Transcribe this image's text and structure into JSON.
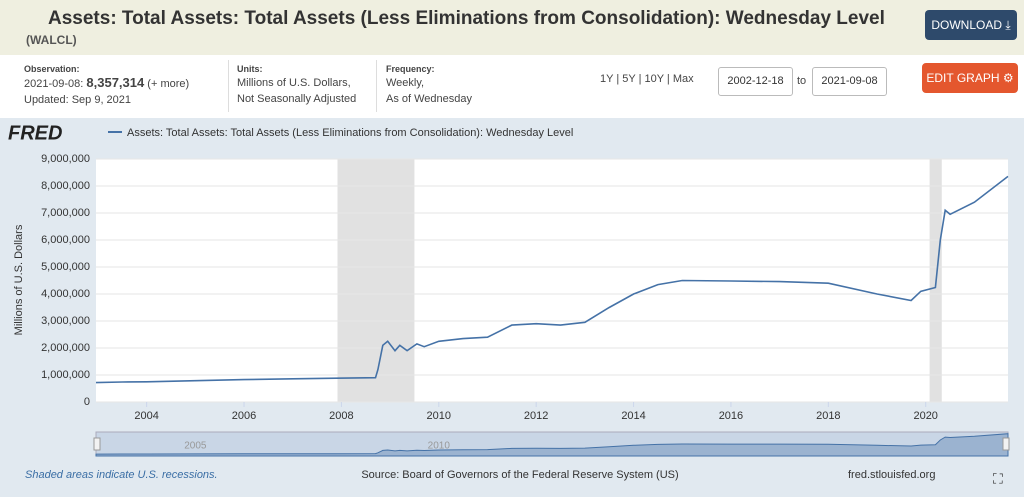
{
  "header": {
    "title": "Assets: Total Assets: Total Assets (Less Eliminations from Consolidation): Wednesday Level",
    "series_id": "(WALCL)",
    "download": "DOWNLOAD",
    "edit_graph": "EDIT GRAPH",
    "observation": {
      "label": "Observation:",
      "date": "2021-09-08:",
      "value": "8,357,314",
      "more": "(+ more)",
      "updated": "Updated: Sep 9, 2021"
    },
    "units": {
      "label": "Units:",
      "lines": [
        "Millions of U.S. Dollars,",
        "Not Seasonally Adjusted"
      ]
    },
    "frequency": {
      "label": "Frequency:",
      "lines": [
        "Weekly,",
        "As of Wednesday"
      ]
    },
    "ranges": [
      "1Y",
      "5Y",
      "10Y",
      "Max"
    ],
    "start": "2002-12-18",
    "to": "to",
    "end": "2021-09-08"
  },
  "chart_data": {
    "type": "line",
    "logo": "FRED",
    "ylabel": "Millions of U.S. Dollars",
    "x": [
      2002.96,
      2003.5,
      2004,
      2005,
      2006,
      2007,
      2007.9,
      2008.7,
      2008.75,
      2008.85,
      2008.95,
      2009.1,
      2009.2,
      2009.35,
      2009.55,
      2009.7,
      2010,
      2010.5,
      2011,
      2011.5,
      2012,
      2012.5,
      2013,
      2013.5,
      2014,
      2014.5,
      2015,
      2016,
      2017,
      2018,
      2019,
      2019.7,
      2019.9,
      2020.2,
      2020.3,
      2020.4,
      2020.5,
      2021,
      2021.69
    ],
    "series": [
      {
        "name": "Assets: Total Assets: Total Assets (Less Eliminations from Consolidation): Wednesday Level",
        "color": "#4572a7",
        "values": [
          720000,
          740000,
          750000,
          790000,
          830000,
          860000,
          880000,
          900000,
          1200000,
          2100000,
          2250000,
          1900000,
          2100000,
          1900000,
          2150000,
          2050000,
          2250000,
          2350000,
          2400000,
          2850000,
          2900000,
          2850000,
          2950000,
          3500000,
          4000000,
          4350000,
          4500000,
          4480000,
          4460000,
          4400000,
          4000000,
          3760000,
          4100000,
          4240000,
          6000000,
          7100000,
          6950000,
          7400000,
          8357314
        ]
      }
    ],
    "xlim": [
      2002.96,
      2021.69
    ],
    "xticks": [
      2004,
      2006,
      2008,
      2010,
      2012,
      2014,
      2016,
      2018,
      2020
    ],
    "ylim": [
      0,
      9000000
    ],
    "yticks": [
      0,
      {
        "value": 1000000,
        "label": "1,000,000"
      },
      {
        "value": 2000000,
        "label": "2,000,000"
      },
      {
        "value": 3000000,
        "label": "3,000,000"
      },
      {
        "value": 4000000,
        "label": "4,000,000"
      },
      {
        "value": 5000000,
        "label": "5,000,000"
      },
      {
        "value": 6000000,
        "label": "6,000,000"
      },
      {
        "value": 7000000,
        "label": "7,000,000"
      },
      {
        "value": 8000000,
        "label": "8,000,000"
      },
      {
        "value": 9000000,
        "label": "9,000,000"
      }
    ],
    "grid": true,
    "recession_color": "#e1e1e1",
    "recessions": [
      [
        2007.92,
        2009.5
      ],
      [
        2020.08,
        2020.33
      ]
    ],
    "navigator_ticks": [
      2005,
      2010
    ],
    "recession_note": "Shaded areas indicate U.S. recessions.",
    "source": "Source: Board of Governors of the Federal Reserve System (US)",
    "site": "fred.stlouisfed.org"
  }
}
